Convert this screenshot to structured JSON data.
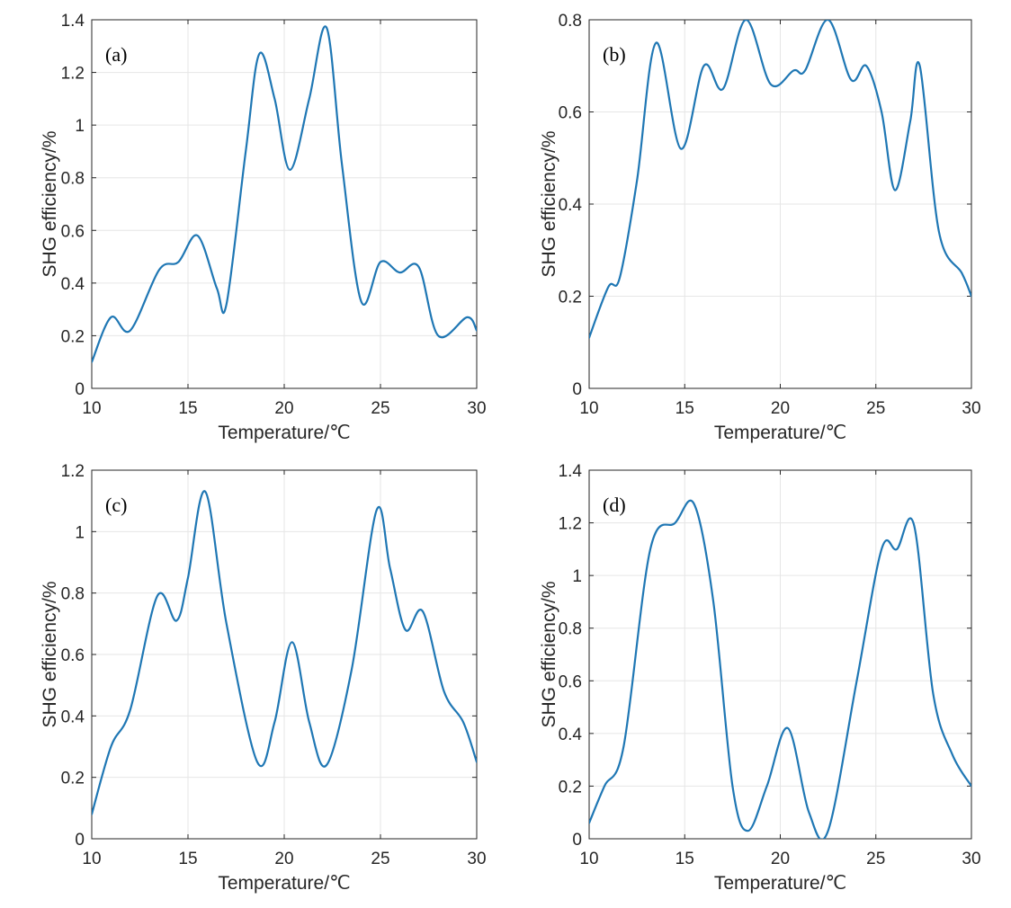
{
  "colors": {
    "line": "#1f77b4",
    "axis": "#262626",
    "grid": "#e6e6e6"
  },
  "chart_data": [
    {
      "type": "line",
      "panel_label": "(a)",
      "xlabel": "Temperature/℃",
      "ylabel": "SHG efficiency/%",
      "xlim": [
        10,
        30
      ],
      "ylim": [
        0,
        1.4
      ],
      "xticks": [
        "10",
        "15",
        "20",
        "25",
        "30"
      ],
      "yticks": [
        "0",
        "0.2",
        "0.4",
        "0.6",
        "0.8",
        "1",
        "1.2",
        "1.4"
      ],
      "x": [
        10,
        11,
        12,
        13.5,
        14.5,
        15.5,
        16.5,
        17,
        18,
        18.7,
        19.5,
        20.3,
        21.3,
        22.2,
        23,
        24,
        25,
        26,
        27,
        28,
        29.5,
        30
      ],
      "y": [
        0.1,
        0.27,
        0.22,
        0.45,
        0.48,
        0.58,
        0.38,
        0.32,
        0.9,
        1.27,
        1.1,
        0.83,
        1.1,
        1.37,
        0.85,
        0.33,
        0.48,
        0.44,
        0.46,
        0.2,
        0.27,
        0.22
      ]
    },
    {
      "type": "line",
      "panel_label": "(b)",
      "xlabel": "Temperature/℃",
      "ylabel": "SHG efficiency/%",
      "xlim": [
        10,
        30
      ],
      "ylim": [
        0,
        0.8
      ],
      "xticks": [
        "10",
        "15",
        "20",
        "25",
        "30"
      ],
      "yticks": [
        "0",
        "0.2",
        "0.4",
        "0.6",
        "0.8"
      ],
      "x": [
        10,
        11,
        11.6,
        12.5,
        13.5,
        14.8,
        16,
        17,
        18.2,
        19.5,
        20.7,
        21.3,
        22.5,
        23.7,
        24.5,
        25.3,
        26,
        26.8,
        27.3,
        28.3,
        29.5,
        30
      ],
      "y": [
        0.11,
        0.22,
        0.24,
        0.45,
        0.75,
        0.52,
        0.7,
        0.65,
        0.8,
        0.66,
        0.69,
        0.69,
        0.8,
        0.67,
        0.7,
        0.6,
        0.43,
        0.58,
        0.7,
        0.34,
        0.25,
        0.2
      ]
    },
    {
      "type": "line",
      "panel_label": "(c)",
      "xlabel": "Temperature/℃",
      "ylabel": "SHG efficiency/%",
      "xlim": [
        10,
        30
      ],
      "ylim": [
        0,
        1.2
      ],
      "xticks": [
        "10",
        "15",
        "20",
        "25",
        "30"
      ],
      "yticks": [
        "0",
        "0.2",
        "0.4",
        "0.6",
        "0.8",
        "1",
        "1.2"
      ],
      "x": [
        10,
        11,
        12,
        13.4,
        14.4,
        15,
        15.9,
        17,
        18.6,
        19.5,
        20.4,
        21.3,
        22.2,
        23.5,
        24.8,
        25.5,
        26.3,
        27.2,
        28.3,
        29.3,
        30
      ],
      "y": [
        0.08,
        0.3,
        0.42,
        0.79,
        0.71,
        0.85,
        1.13,
        0.7,
        0.25,
        0.38,
        0.64,
        0.38,
        0.24,
        0.55,
        1.07,
        0.88,
        0.68,
        0.74,
        0.48,
        0.38,
        0.25
      ]
    },
    {
      "type": "line",
      "panel_label": "(d)",
      "xlabel": "Temperature/℃",
      "ylabel": "SHG efficiency/%",
      "xlim": [
        10,
        30
      ],
      "ylim": [
        0,
        1.4
      ],
      "xticks": [
        "10",
        "15",
        "20",
        "25",
        "30"
      ],
      "yticks": [
        "0",
        "0.2",
        "0.4",
        "0.6",
        "0.8",
        "1",
        "1.2",
        "1.4"
      ],
      "x": [
        10,
        10.8,
        11.8,
        13.2,
        14.5,
        15.5,
        16.5,
        17.5,
        18.3,
        19.3,
        20.4,
        21.5,
        22.5,
        24,
        25.3,
        26.1,
        27,
        28,
        29,
        30
      ],
      "y": [
        0.06,
        0.2,
        0.35,
        1.1,
        1.2,
        1.27,
        0.9,
        0.2,
        0.03,
        0.2,
        0.42,
        0.1,
        0.03,
        0.6,
        1.1,
        1.1,
        1.19,
        0.55,
        0.32,
        0.2
      ]
    }
  ]
}
